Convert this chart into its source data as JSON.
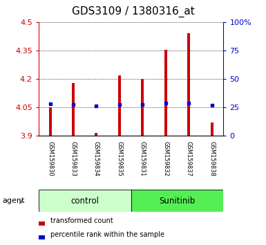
{
  "title": "GDS3109 / 1380316_at",
  "samples": [
    "GSM159830",
    "GSM159833",
    "GSM159834",
    "GSM159835",
    "GSM159831",
    "GSM159832",
    "GSM159837",
    "GSM159838"
  ],
  "bar_bottoms": [
    3.9,
    3.9,
    3.9,
    3.9,
    3.9,
    3.9,
    3.9,
    3.9
  ],
  "bar_tops": [
    4.051,
    4.18,
    3.918,
    4.22,
    4.2,
    4.355,
    4.44,
    3.97
  ],
  "blue_markers": [
    4.07,
    4.065,
    4.06,
    4.065,
    4.065,
    4.072,
    4.072,
    4.063
  ],
  "groups": [
    {
      "label": "control",
      "indices": [
        0,
        1,
        2,
        3
      ],
      "color": "#ccffcc"
    },
    {
      "label": "Sunitinib",
      "indices": [
        4,
        5,
        6,
        7
      ],
      "color": "#55ee55"
    }
  ],
  "ylim_left": [
    3.9,
    4.5
  ],
  "ylim_right": [
    0,
    100
  ],
  "yticks_left": [
    3.9,
    4.05,
    4.2,
    4.35,
    4.5
  ],
  "yticks_right": [
    0,
    25,
    50,
    75,
    100
  ],
  "ytick_labels_left": [
    "3.9",
    "4.05",
    "4.2",
    "4.35",
    "4.5"
  ],
  "ytick_labels_right": [
    "0",
    "25",
    "50",
    "75",
    "100%"
  ],
  "bar_color": "#cc0000",
  "marker_color": "#0000cc",
  "grid_color": "#000000",
  "bg_color": "#ffffff",
  "plot_bg": "#ffffff",
  "label_area_bg": "#cccccc",
  "title_fontsize": 11,
  "tick_fontsize": 8,
  "agent_label": "agent",
  "legend1_label": "transformed count",
  "legend2_label": "percentile rank within the sample",
  "bar_width": 0.12
}
